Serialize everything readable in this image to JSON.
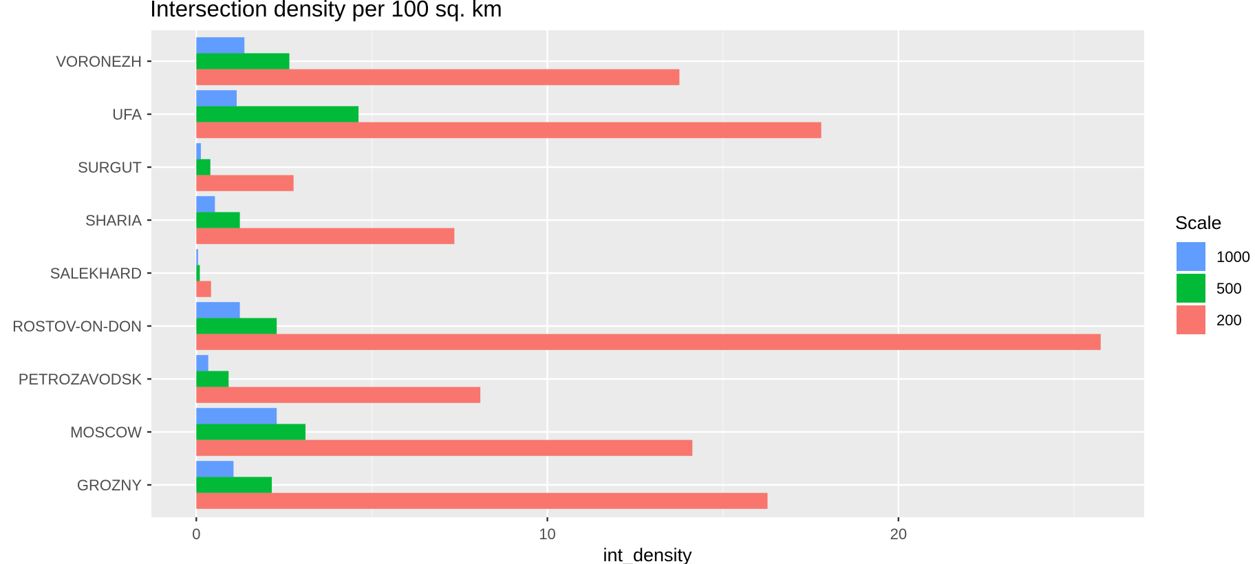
{
  "chart_data": {
    "type": "bar",
    "orientation": "horizontal",
    "title": "Intersection density per 100 sq. km",
    "xlabel": "int_density",
    "ylabel": "",
    "xlim": [
      -1.28,
      27.0
    ],
    "x_ticks": [
      0,
      10,
      20
    ],
    "grid": true,
    "legend_title": "Scale",
    "legend_position": "right",
    "categories": [
      "VORONEZH",
      "UFA",
      "SURGUT",
      "SHARIA",
      "SALEKHARD",
      "ROSTOV-ON-DON",
      "PETROZAVODSK",
      "MOSCOW",
      "GROZNY"
    ],
    "series": [
      {
        "name": "1000",
        "color": "#619CFF",
        "values": [
          1.37,
          1.15,
          0.13,
          0.53,
          0.05,
          1.24,
          0.34,
          2.29,
          1.06
        ]
      },
      {
        "name": "500",
        "color": "#00BA38",
        "values": [
          2.65,
          4.62,
          0.4,
          1.24,
          0.1,
          2.29,
          0.92,
          3.11,
          2.15
        ]
      },
      {
        "name": "200",
        "color": "#F8766D",
        "values": [
          13.76,
          17.8,
          2.77,
          7.35,
          0.42,
          25.76,
          8.09,
          14.13,
          16.27
        ]
      }
    ]
  }
}
